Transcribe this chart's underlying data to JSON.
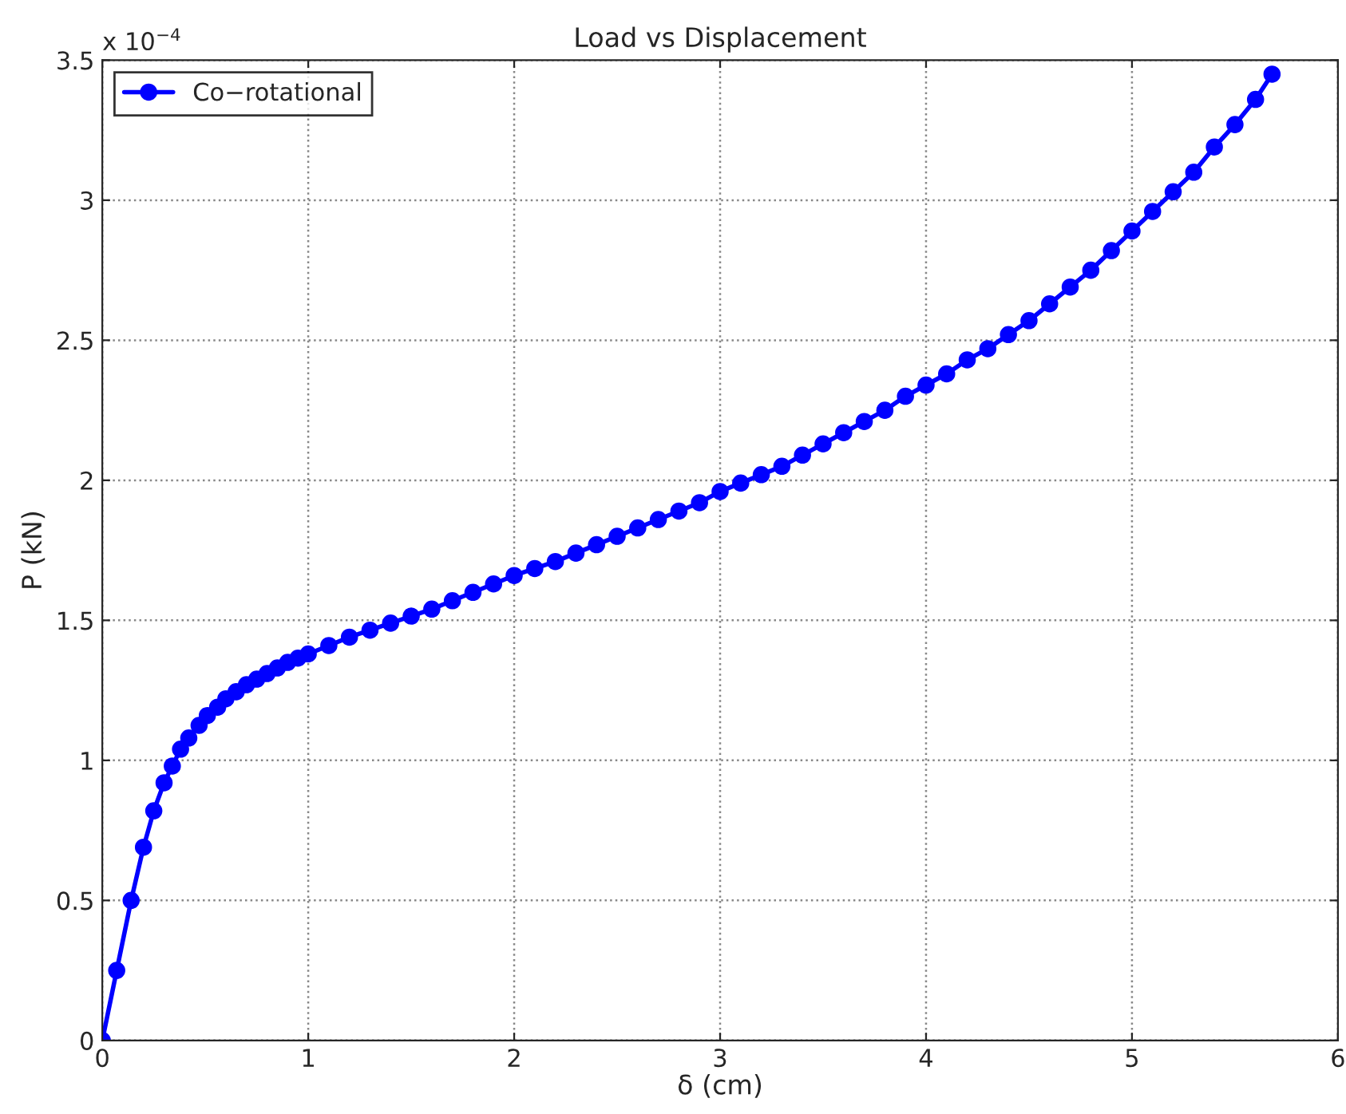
{
  "chart_data": {
    "type": "line",
    "title": "Load vs Displacement",
    "xlabel": "δ (cm)",
    "ylabel": "P (kN)",
    "annotations": [
      "x 10$^{−4}$"
    ],
    "x": [
      0,
      0.07,
      0.14,
      0.2,
      0.25,
      0.3,
      0.34,
      0.38,
      0.42,
      0.47,
      0.51,
      0.56,
      0.6,
      0.65,
      0.7,
      0.75,
      0.8,
      0.85,
      0.9,
      0.95,
      1.0,
      1.1,
      1.2,
      1.3,
      1.4,
      1.5,
      1.6,
      1.7,
      1.8,
      1.9,
      2.0,
      2.1,
      2.2,
      2.3,
      2.4,
      2.5,
      2.6,
      2.7,
      2.8,
      2.9,
      3.0,
      3.1,
      3.2,
      3.3,
      3.4,
      3.5,
      3.6,
      3.7,
      3.8,
      3.9,
      4.0,
      4.1,
      4.2,
      4.3,
      4.4,
      4.5,
      4.6,
      4.7,
      4.8,
      4.9,
      5.0,
      5.1,
      5.2,
      5.3,
      5.4,
      5.5,
      5.6,
      5.68
    ],
    "series": [
      {
        "name": "Co−rotational",
        "color": "#0000ff",
        "values": [
          0,
          0.25,
          0.5,
          0.69,
          0.82,
          0.92,
          0.98,
          1.04,
          1.08,
          1.125,
          1.16,
          1.19,
          1.22,
          1.245,
          1.27,
          1.29,
          1.31,
          1.33,
          1.35,
          1.365,
          1.38,
          1.41,
          1.44,
          1.465,
          1.49,
          1.515,
          1.54,
          1.57,
          1.6,
          1.63,
          1.66,
          1.685,
          1.71,
          1.74,
          1.77,
          1.8,
          1.83,
          1.86,
          1.89,
          1.92,
          1.96,
          1.99,
          2.02,
          2.05,
          2.09,
          2.13,
          2.17,
          2.21,
          2.25,
          2.3,
          2.34,
          2.38,
          2.43,
          2.47,
          2.52,
          2.57,
          2.63,
          2.69,
          2.75,
          2.82,
          2.89,
          2.96,
          3.03,
          3.1,
          3.19,
          3.27,
          3.36,
          3.45
        ]
      }
    ],
    "xlim": [
      0,
      6
    ],
    "xticks": [
      0,
      1,
      2,
      3,
      4,
      5,
      6
    ],
    "ylim": [
      0,
      3.5
    ],
    "yticks": [
      0,
      0.5,
      1,
      1.5,
      2,
      2.5,
      3,
      3.5
    ],
    "grid": true,
    "legend": "top left",
    "marker": "circle",
    "line_style": "solid"
  }
}
